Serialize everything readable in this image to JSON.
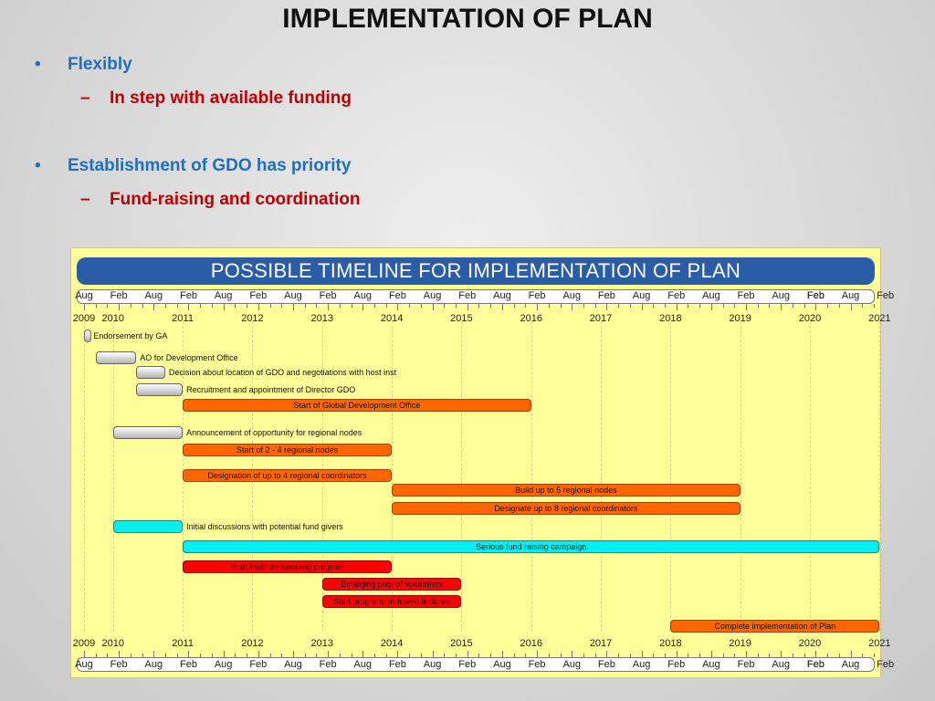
{
  "title": "IMPLEMENTATION OF PLAN",
  "bullets": [
    {
      "mark": "•",
      "text": "Flexibly",
      "sub": {
        "mark": "–",
        "text": "In step with available funding"
      }
    },
    {
      "mark": "•",
      "text": "Establishment of GDO has priority",
      "sub": {
        "mark": "–",
        "text": "Fund-raising and coordination"
      }
    }
  ],
  "chart_data": {
    "type": "gantt",
    "title": "POSSIBLE TIMELINE FOR IMPLEMENTATION OF PLAN",
    "month_labels": [
      "Aug",
      "Feb",
      "Aug",
      "Feb",
      "Aug",
      "Feb",
      "Aug",
      "Feb",
      "Aug",
      "Feb",
      "Aug",
      "Feb",
      "Aug",
      "Feb",
      "Aug",
      "Feb",
      "Aug",
      "Feb",
      "Aug",
      "Feb",
      "Aug",
      "Feb",
      "Aug",
      "Feb",
      "Feb"
    ],
    "year_labels": [
      "2009",
      "2010",
      "2011",
      "2012",
      "2013",
      "2014",
      "2015",
      "2016",
      "2017",
      "2018",
      "2019",
      "2020",
      "2021"
    ],
    "tasks": [
      {
        "name": "Endorsement by GA",
        "start": "2009-08",
        "end": "2009-09",
        "color": "grey",
        "label_pos": "outside"
      },
      {
        "name": "AO for Development Office",
        "start": "2009-10",
        "end": "2010-05",
        "color": "grey",
        "label_pos": "outside"
      },
      {
        "name": "Decision about location of GDO and negotiations with host inst",
        "start": "2010-05",
        "end": "2010-10",
        "color": "grey",
        "label_pos": "outside"
      },
      {
        "name": "Recruitment and appointment of Director GDO",
        "start": "2010-05",
        "end": "2011-01",
        "color": "grey",
        "label_pos": "outside"
      },
      {
        "name": "Start of Global Development Office",
        "start": "2011-01",
        "end": "2016-01",
        "color": "orange",
        "label_pos": "inside"
      },
      {
        "name": "Announcement of opportunity  for regional nodes",
        "start": "2010-01",
        "end": "2011-01",
        "color": "grey",
        "label_pos": "outside"
      },
      {
        "name": "Start of 2 - 4 regional nodes",
        "start": "2011-01",
        "end": "2014-01",
        "color": "orange",
        "label_pos": "inside"
      },
      {
        "name": "Designation of up to 4 regional coordinators",
        "start": "2011-01",
        "end": "2014-01",
        "color": "orange",
        "label_pos": "inside"
      },
      {
        "name": "Build up to 5 regional nodes",
        "start": "2014-01",
        "end": "2019-01",
        "color": "orange",
        "label_pos": "inside"
      },
      {
        "name": "Designate up to 8 regional coordinators",
        "start": "2014-01",
        "end": "2019-01",
        "color": "orange",
        "label_pos": "inside"
      },
      {
        "name": "Initial discussions with potential fund givers",
        "start": "2010-01",
        "end": "2011-01",
        "color": "cyan",
        "label_pos": "outside"
      },
      {
        "name": "Serious fund raising campaign",
        "start": "2011-01",
        "end": "2021-01",
        "color": "cyan",
        "label_pos": "inside"
      },
      {
        "name": "Start Institute twinning program",
        "start": "2011-01",
        "end": "2014-01",
        "color": "red",
        "label_pos": "inside"
      },
      {
        "name": "Enlarging pool of volunteers",
        "start": "2013-01",
        "end": "2015-01",
        "color": "red",
        "label_pos": "inside"
      },
      {
        "name": "Start program endowed lectures",
        "start": "2013-01",
        "end": "2015-01",
        "color": "red",
        "label_pos": "inside"
      },
      {
        "name": "Complete implementation of Plan",
        "start": "2018-01",
        "end": "2021-01",
        "color": "orange",
        "label_pos": "inside"
      }
    ]
  }
}
